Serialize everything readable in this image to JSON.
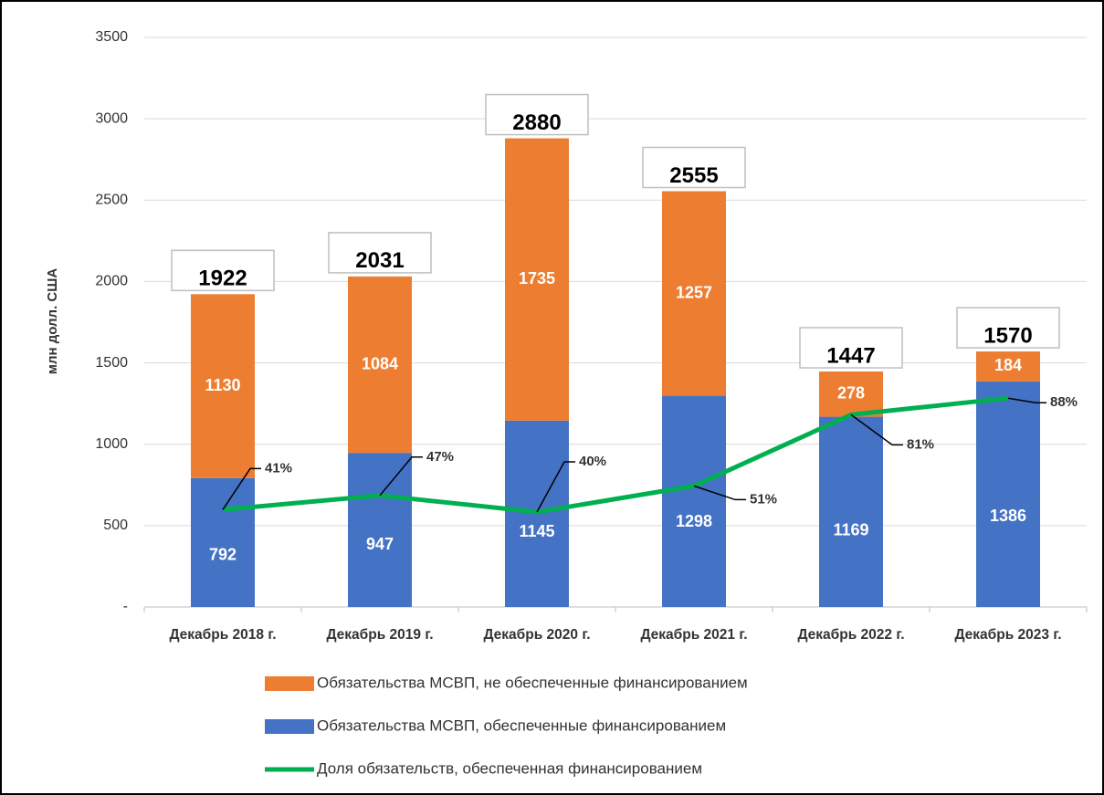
{
  "chart_data": {
    "type": "bar",
    "y_label": "млн долл. США",
    "categories": [
      "Декабрь 2018 г.",
      "Декабрь 2019 г.",
      "Декабрь 2020 г.",
      "Декабрь 2021 г.",
      "Декабрь 2022 г.",
      "Декабрь 2023 г."
    ],
    "series": [
      {
        "name": "Обязательства МСВП, обеспеченные финансированием",
        "color": "#4472c4",
        "values": [
          792,
          947,
          1145,
          1298,
          1169,
          1386
        ]
      },
      {
        "name": "Обязательства МСВП, не обеспеченные финансированием",
        "color": "#ed7d31",
        "values": [
          1130,
          1084,
          1735,
          1257,
          278,
          184
        ]
      },
      {
        "name": "Доля обязательств, обеспеченная финансированием",
        "color": "#00b050",
        "type": "line",
        "axis": "y2",
        "values": [
          41,
          47,
          40,
          51,
          81,
          88
        ],
        "value_labels": [
          "41%",
          "47%",
          "40%",
          "51%",
          "81%",
          "88%"
        ]
      }
    ],
    "totals": [
      1922,
      2031,
      2880,
      2555,
      1447,
      1570
    ],
    "ylim": [
      0,
      3500
    ],
    "yticks": [
      {
        "value": 0,
        "label": "-"
      },
      500,
      1000,
      1500,
      2000,
      2500,
      3000,
      3500
    ],
    "y2lim": [
      0,
      240
    ],
    "grid": true
  }
}
